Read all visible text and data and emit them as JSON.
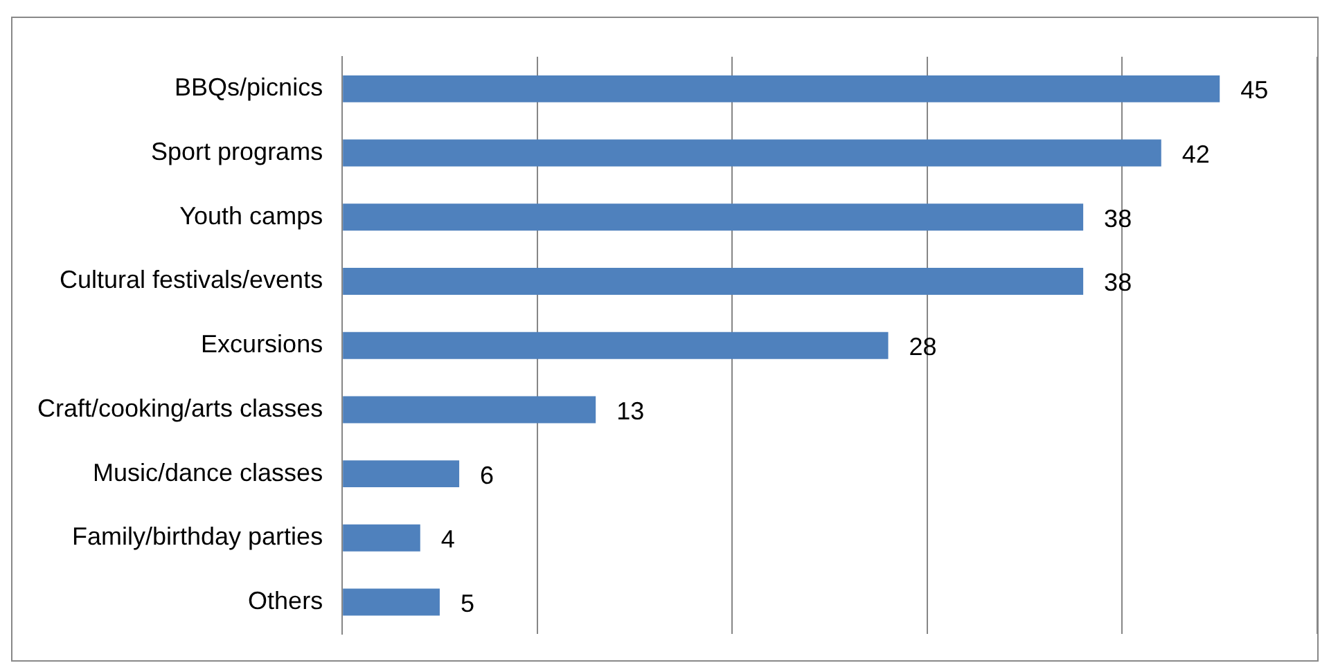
{
  "chart_data": {
    "type": "bar",
    "orientation": "horizontal",
    "categories": [
      "BBQs/picnics",
      "Sport programs",
      "Youth camps",
      "Cultural festivals/events",
      "Excursions",
      "Craft/cooking/arts classes",
      "Music/dance classes",
      "Family/birthday parties",
      "Others"
    ],
    "values": [
      45,
      42,
      38,
      38,
      28,
      13,
      6,
      4,
      5
    ],
    "color": "#4f81bd",
    "xlim": [
      0,
      50
    ],
    "xticks": [
      {
        "value": 0,
        "label": null
      },
      {
        "value": 10,
        "label": null
      },
      {
        "value": 20,
        "label": null
      },
      {
        "value": 30,
        "label": null
      },
      {
        "value": 40,
        "label": null
      },
      {
        "value": 50,
        "label": null
      }
    ],
    "tick_labels": "y",
    "grid": "x",
    "legend": false,
    "data_labels": true
  }
}
